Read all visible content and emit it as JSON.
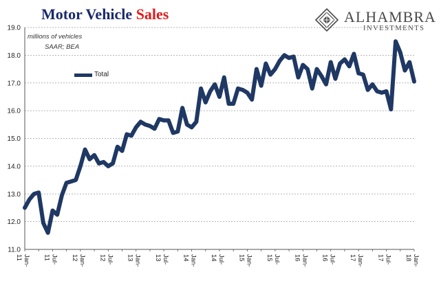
{
  "header": {
    "title_part1": "Motor Vehicle ",
    "title_part2": "Sales",
    "title_part1_color": "#1b2a6b",
    "title_part2_color": "#e01c1c"
  },
  "logo": {
    "name": "ALHAMBRA",
    "subtitle": "INVESTMENTS",
    "icon": "alhambra-diamond-logo"
  },
  "chart_data": {
    "type": "line",
    "title": "Motor Vehicle Sales",
    "annotations": [
      "millions of vehicles",
      "SAAR; BEA"
    ],
    "ylabel": "",
    "xlabel": "",
    "ylim": [
      11.0,
      19.0
    ],
    "yticks": [
      "11.0",
      "12.0",
      "13.0",
      "14.0",
      "15.0",
      "16.0",
      "17.0",
      "18.0",
      "19.0"
    ],
    "ytick_values": [
      11,
      12,
      13,
      14,
      15,
      16,
      17,
      18,
      19
    ],
    "xticks": [
      {
        "index": 0,
        "month": "Jan-",
        "year": "11"
      },
      {
        "index": 6,
        "month": "Jul-",
        "year": "11"
      },
      {
        "index": 12,
        "month": "Jan-",
        "year": "12"
      },
      {
        "index": 18,
        "month": "Jul-",
        "year": "12"
      },
      {
        "index": 24,
        "month": "Jan-",
        "year": "13"
      },
      {
        "index": 30,
        "month": "Jul-",
        "year": "13"
      },
      {
        "index": 36,
        "month": "Jan-",
        "year": "14"
      },
      {
        "index": 42,
        "month": "Jul-",
        "year": "14"
      },
      {
        "index": 48,
        "month": "Jan-",
        "year": "15"
      },
      {
        "index": 54,
        "month": "Jul-",
        "year": "15"
      },
      {
        "index": 60,
        "month": "Jan-",
        "year": "16"
      },
      {
        "index": 66,
        "month": "Jul-",
        "year": "16"
      },
      {
        "index": 72,
        "month": "Jan-",
        "year": "17"
      },
      {
        "index": 78,
        "month": "Jul-",
        "year": "17"
      },
      {
        "index": 84,
        "month": "Jan-",
        "year": "18"
      }
    ],
    "grid": true,
    "legend_position": "top-left",
    "series": [
      {
        "name": "Total",
        "color": "#1f3864",
        "values": [
          12.5,
          12.8,
          13.0,
          13.05,
          11.95,
          11.6,
          12.4,
          12.25,
          12.95,
          13.4,
          13.45,
          13.5,
          14.0,
          14.6,
          14.25,
          14.4,
          14.1,
          14.15,
          14.0,
          14.1,
          14.7,
          14.55,
          15.15,
          15.1,
          15.4,
          15.6,
          15.5,
          15.45,
          15.35,
          15.7,
          15.65,
          15.65,
          15.2,
          15.25,
          16.1,
          15.5,
          15.4,
          15.6,
          16.8,
          16.3,
          16.7,
          16.95,
          16.5,
          17.2,
          16.25,
          16.25,
          16.8,
          16.75,
          16.65,
          16.4,
          17.5,
          16.9,
          17.7,
          17.3,
          17.5,
          17.8,
          18.0,
          17.9,
          17.95,
          17.2,
          17.65,
          17.5,
          16.8,
          17.5,
          17.25,
          16.95,
          17.75,
          17.15,
          17.7,
          17.85,
          17.6,
          18.05,
          17.35,
          17.3,
          16.75,
          16.95,
          16.7,
          16.65,
          16.7,
          16.05,
          18.5,
          18.1,
          17.45,
          17.75,
          17.05
        ]
      }
    ]
  }
}
